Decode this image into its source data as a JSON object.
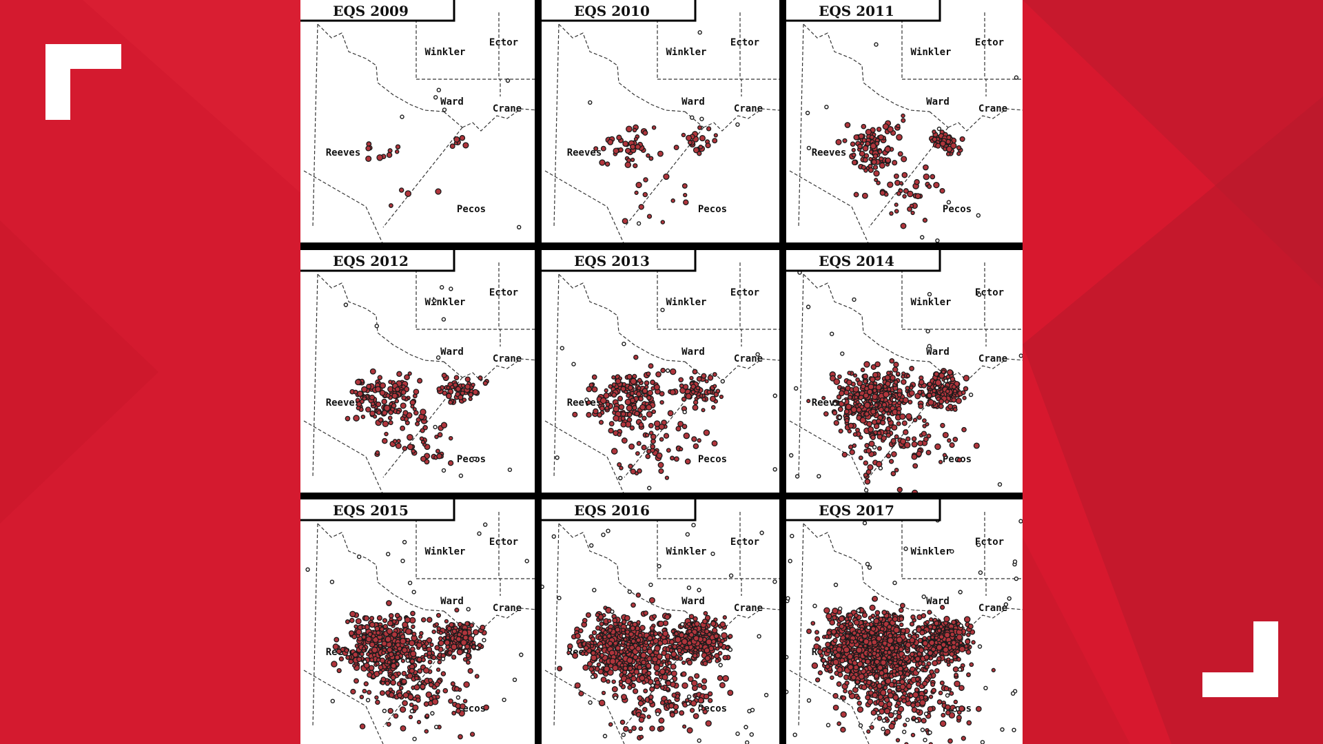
{
  "colors": {
    "background": "#d7182e",
    "background_dark": "#b51a2c",
    "quake_fill": "#b0353c",
    "quake_outline": "#1a1a1a",
    "map_bg": "#ffffff",
    "border": "#000000",
    "corner_marks": "#ffffff"
  },
  "decorations": {
    "top_left_icon": "corner-bracket-icon",
    "bottom_right_icon": "corner-bracket-icon"
  },
  "counties": [
    "Winkler",
    "Ector",
    "Ward",
    "Crane",
    "Reeves",
    "Pecos"
  ],
  "panels": [
    {
      "title": "EQS 2009",
      "year": 2009,
      "activity": 20
    },
    {
      "title": "EQS 2010",
      "year": 2010,
      "activity": 75
    },
    {
      "title": "EQS 2011",
      "year": 2011,
      "activity": 190
    },
    {
      "title": "EQS 2012",
      "year": 2012,
      "activity": 230
    },
    {
      "title": "EQS 2013",
      "year": 2013,
      "activity": 280
    },
    {
      "title": "EQS 2014",
      "year": 2014,
      "activity": 520
    },
    {
      "title": "EQS 2015",
      "year": 2015,
      "activity": 620
    },
    {
      "title": "EQS 2016",
      "year": 2016,
      "activity": 900
    },
    {
      "title": "EQS 2017",
      "year": 2017,
      "activity": 1300
    }
  ]
}
